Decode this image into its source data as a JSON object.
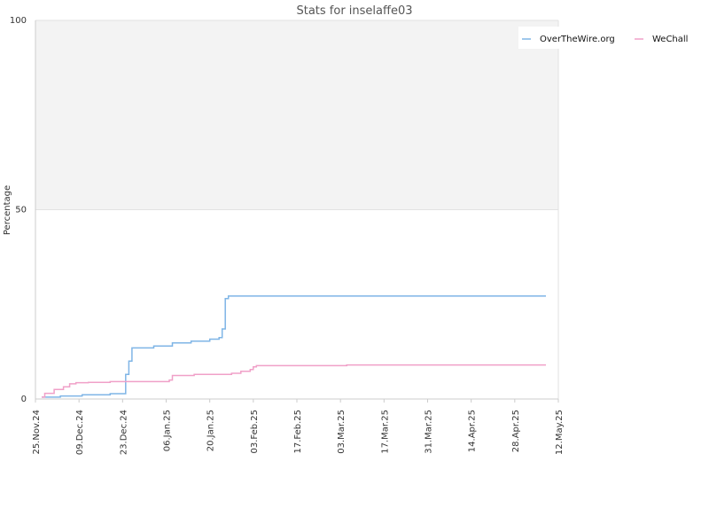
{
  "chart_data": {
    "type": "line",
    "title": "Stats for inselaffe03",
    "ylabel": "Percentage",
    "xlabel": "",
    "ylim": [
      0,
      100
    ],
    "y_ticks": [
      "0",
      "50",
      "100"
    ],
    "x_ticks": [
      "25.Nov.24",
      "09.Dec.24",
      "23.Dec.24",
      "06.Jan.25",
      "20.Jan.25",
      "03.Feb.25",
      "17.Feb.25",
      "03.Mar.25",
      "17.Mar.25",
      "31.Mar.25",
      "14.Apr.25",
      "28.Apr.25",
      "12.May.25"
    ],
    "x_range": [
      "2024-11-25",
      "2025-05-12"
    ],
    "grid": "horizontal",
    "legend_position": "top-right",
    "background_band": {
      "from": 50,
      "to": 100,
      "color": "#f3f3f3"
    },
    "series": [
      {
        "name": "OverTheWire.org",
        "color": "#7fb5e6",
        "points": [
          [
            "2024-11-27",
            0.5
          ],
          [
            "2024-12-03",
            0.8
          ],
          [
            "2024-12-10",
            1.1
          ],
          [
            "2024-12-19",
            1.4
          ],
          [
            "2024-12-24",
            6.5
          ],
          [
            "2024-12-25",
            10
          ],
          [
            "2024-12-26",
            13.5
          ],
          [
            "2025-01-02",
            14
          ],
          [
            "2025-01-08",
            14.8
          ],
          [
            "2025-01-14",
            15.3
          ],
          [
            "2025-01-20",
            15.8
          ],
          [
            "2025-01-23",
            16.2
          ],
          [
            "2025-01-24",
            18.5
          ],
          [
            "2025-01-25",
            26.5
          ],
          [
            "2025-01-26",
            27.2
          ],
          [
            "2025-05-08",
            27.2
          ]
        ]
      },
      {
        "name": "WeChall",
        "color": "#f0a0c8",
        "points": [
          [
            "2024-11-27",
            0.5
          ],
          [
            "2024-11-28",
            1.5
          ],
          [
            "2024-12-01",
            2.5
          ],
          [
            "2024-12-04",
            3.2
          ],
          [
            "2024-12-06",
            4
          ],
          [
            "2024-12-08",
            4.3
          ],
          [
            "2024-12-12",
            4.4
          ],
          [
            "2024-12-19",
            4.6
          ],
          [
            "2025-01-07",
            5
          ],
          [
            "2025-01-08",
            6.2
          ],
          [
            "2025-01-15",
            6.5
          ],
          [
            "2025-01-27",
            6.8
          ],
          [
            "2025-01-30",
            7.3
          ],
          [
            "2025-02-02",
            7.8
          ],
          [
            "2025-02-03",
            8.5
          ],
          [
            "2025-02-04",
            8.8
          ],
          [
            "2025-03-05",
            9
          ],
          [
            "2025-05-08",
            9
          ]
        ]
      }
    ]
  }
}
